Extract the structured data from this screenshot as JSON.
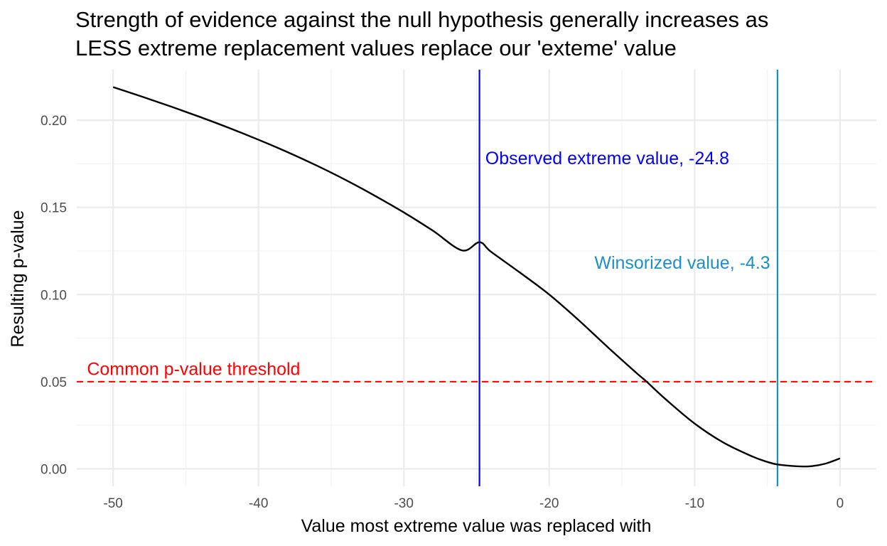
{
  "chart_data": {
    "type": "line",
    "title_lines": [
      "Strength of evidence against the null hypothesis generally increases as",
      "LESS extreme replacement values replace our 'exteme' value"
    ],
    "xlabel": "Value most extreme value was replaced with",
    "ylabel": "Resulting p-value",
    "xlim": [
      -52.5,
      2.5
    ],
    "ylim": [
      -0.01,
      0.229
    ],
    "x_ticks": [
      -50,
      -40,
      -30,
      -20,
      -10,
      0
    ],
    "x_tick_labels": [
      "-50",
      "-40",
      "-30",
      "-20",
      "-10",
      "0"
    ],
    "y_ticks": [
      0.0,
      0.05,
      0.1,
      0.15,
      0.2
    ],
    "y_tick_labels": [
      "0.00",
      "0.05",
      "0.10",
      "0.15",
      "0.20"
    ],
    "x_minor_ticks": [
      -45,
      -35,
      -25,
      -15,
      -5
    ],
    "y_minor_ticks": [
      0.025,
      0.075,
      0.125,
      0.175
    ],
    "grid": true,
    "series": [
      {
        "color": "#000000",
        "x": [
          -50,
          -48,
          -46,
          -44,
          -42,
          -40,
          -38,
          -36,
          -34,
          -32,
          -30,
          -28,
          -26,
          -24.8,
          -24,
          -22,
          -20,
          -18,
          -16,
          -14,
          -13.3,
          -12,
          -10,
          -8,
          -6,
          -5,
          -4.3,
          -3,
          -2,
          -1,
          0
        ],
        "y": [
          0.219,
          0.2135,
          0.2078,
          0.2018,
          0.1955,
          0.1888,
          0.1817,
          0.174,
          0.1657,
          0.1567,
          0.1471,
          0.1366,
          0.1253,
          0.13,
          0.1245,
          0.1125,
          0.1,
          0.0855,
          0.07,
          0.055,
          0.05,
          0.04,
          0.026,
          0.015,
          0.007,
          0.004,
          0.0025,
          0.0015,
          0.0015,
          0.003,
          0.006
        ]
      }
    ],
    "annotations": [
      {
        "kind": "hline",
        "y": 0.05,
        "color": "#ff0000",
        "style": "dashed",
        "label": "Common p-value threshold",
        "label_x": -51.8,
        "label_y": 0.057
      },
      {
        "kind": "vline",
        "x": -24.8,
        "color": "#0000ff",
        "style": "solid",
        "label": "Observed extreme value, -24.8",
        "label_x": -24.4,
        "label_y": 0.178
      },
      {
        "kind": "vline",
        "x": -4.3,
        "color": "#1a8fc9",
        "style": "solid",
        "label": "Winsorized value, -4.3",
        "label_x": -4.8,
        "label_y": 0.118
      }
    ]
  }
}
